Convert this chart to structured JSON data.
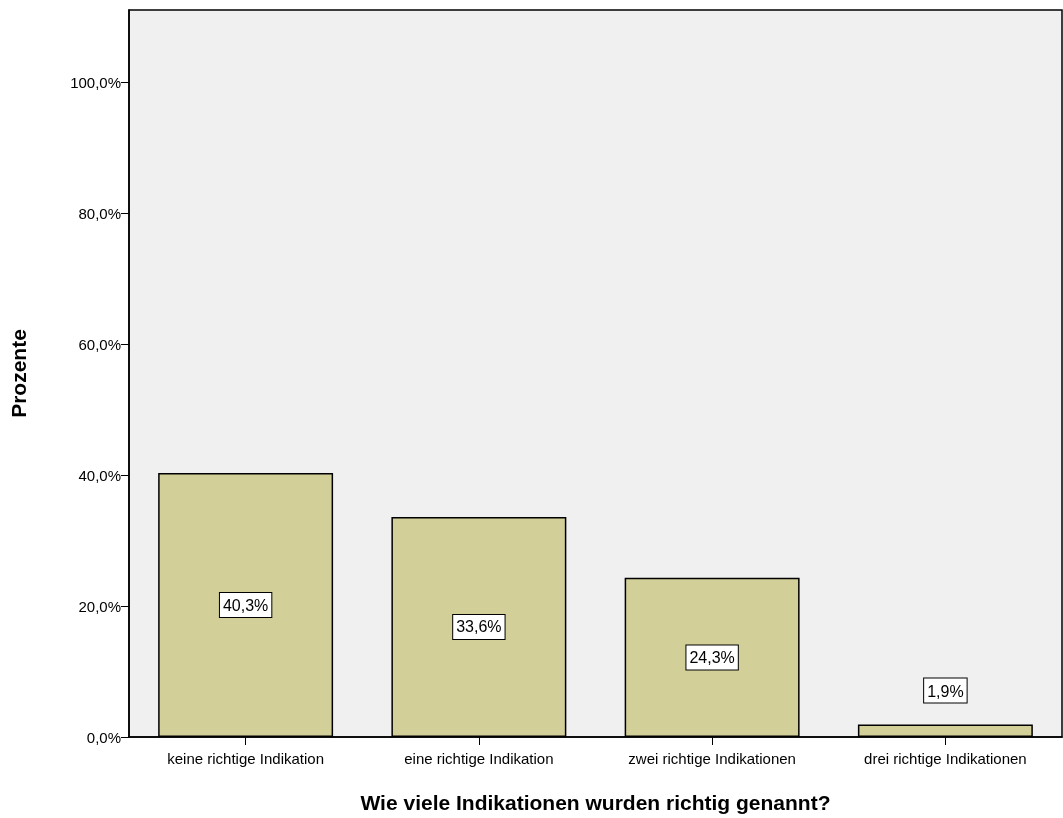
{
  "chart_data": {
    "type": "bar",
    "xlabel": "Wie viele Indikationen wurden richtig genannt?",
    "ylabel": "Prozente",
    "categories": [
      "keine richtige Indikation",
      "eine richtige Indikation",
      "zwei richtige Indikationen",
      "drei richtige Indikationen"
    ],
    "values": [
      40.3,
      33.6,
      24.3,
      1.9
    ],
    "value_labels": [
      "40,3%",
      "33,6%",
      "24,3%",
      "1,9%"
    ],
    "color": "#d3cf99",
    "ylim": [
      0,
      111
    ],
    "yticks": [
      {
        "value": 0,
        "label": "0,0%"
      },
      {
        "value": 20,
        "label": "20,0%"
      },
      {
        "value": 40,
        "label": "40,0%"
      },
      {
        "value": 60,
        "label": "60,0%"
      },
      {
        "value": 80,
        "label": "80,0%"
      },
      {
        "value": 100,
        "label": "100,0%"
      }
    ],
    "grid": false
  }
}
